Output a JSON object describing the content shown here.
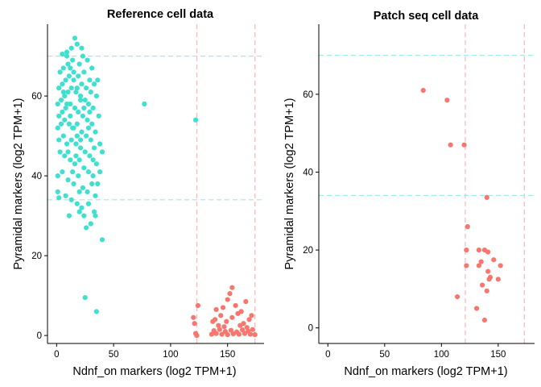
{
  "chart_data": [
    {
      "type": "scatter",
      "title": "Reference cell data",
      "xlabel": "Ndnf_on markers (log2 TPM+1)",
      "ylabel": "Pyramidal markers (log2 TPM+1)",
      "xticks": [
        0,
        50,
        100,
        150
      ],
      "yticks": [
        0,
        20,
        40,
        60
      ],
      "xlim": [
        -8,
        182
      ],
      "ylim": [
        -2,
        78
      ],
      "vlines": [
        123,
        174
      ],
      "hlines": [
        34,
        70
      ],
      "vline_color": "#ffb6b6",
      "hline_color": "#9fe8ec",
      "series": [
        {
          "color": "#40e0d0",
          "points": [
            [
              16,
              74.5
            ],
            [
              22,
              72
            ],
            [
              5,
              70.5
            ],
            [
              9,
              71
            ],
            [
              13,
              72
            ],
            [
              18,
              73
            ],
            [
              23,
              70
            ],
            [
              27,
              69
            ],
            [
              31,
              67
            ],
            [
              3,
              66
            ],
            [
              6,
              67
            ],
            [
              10,
              68
            ],
            [
              14,
              69
            ],
            [
              20,
              68
            ],
            [
              24,
              66
            ],
            [
              29,
              64
            ],
            [
              33,
              63
            ],
            [
              36,
              64
            ],
            [
              2,
              62
            ],
            [
              5,
              63
            ],
            [
              8,
              64
            ],
            [
              11,
              65
            ],
            [
              15,
              66
            ],
            [
              19,
              65
            ],
            [
              22,
              63
            ],
            [
              26,
              62
            ],
            [
              30,
              61
            ],
            [
              35,
              60
            ],
            [
              1,
              58
            ],
            [
              4,
              59
            ],
            [
              7,
              60
            ],
            [
              10,
              61
            ],
            [
              13,
              62
            ],
            [
              17,
              61
            ],
            [
              21,
              60
            ],
            [
              25,
              59
            ],
            [
              28,
              58
            ],
            [
              32,
              57
            ],
            [
              2,
              55
            ],
            [
              5,
              56
            ],
            [
              8,
              57
            ],
            [
              12,
              58
            ],
            [
              16,
              57
            ],
            [
              19,
              56
            ],
            [
              23,
              55
            ],
            [
              27,
              54
            ],
            [
              31,
              53
            ],
            [
              37,
              55
            ],
            [
              1,
              52
            ],
            [
              4,
              53
            ],
            [
              7,
              54
            ],
            [
              11,
              53
            ],
            [
              14,
              52
            ],
            [
              18,
              53
            ],
            [
              22,
              51
            ],
            [
              26,
              50
            ],
            [
              30,
              49
            ],
            [
              34,
              51
            ],
            [
              2,
              49
            ],
            [
              6,
              50
            ],
            [
              9,
              48
            ],
            [
              13,
              49
            ],
            [
              17,
              48
            ],
            [
              21,
              47
            ],
            [
              25,
              46
            ],
            [
              29,
              45
            ],
            [
              33,
              47
            ],
            [
              38,
              48
            ],
            [
              3,
              46
            ],
            [
              7,
              45
            ],
            [
              12,
              44
            ],
            [
              16,
              43
            ],
            [
              20,
              44
            ],
            [
              24,
              42
            ],
            [
              28,
              41
            ],
            [
              32,
              40
            ],
            [
              35,
              43
            ],
            [
              40,
              46
            ],
            [
              1,
              40
            ],
            [
              5,
              41
            ],
            [
              10,
              39
            ],
            [
              15,
              38
            ],
            [
              19,
              40
            ],
            [
              23,
              37
            ],
            [
              27,
              36
            ],
            [
              31,
              38
            ],
            [
              34,
              35
            ],
            [
              38,
              41
            ],
            [
              1,
              36
            ],
            [
              2,
              34.5
            ],
            [
              8,
              35
            ],
            [
              13,
              34
            ],
            [
              18,
              33
            ],
            [
              22,
              32
            ],
            [
              28,
              33
            ],
            [
              33,
              31
            ],
            [
              30,
              28
            ],
            [
              26,
              27
            ],
            [
              24,
              30
            ],
            [
              20,
              31
            ],
            [
              11,
              30
            ],
            [
              34,
              30
            ],
            [
              40,
              24
            ],
            [
              25,
              9.5
            ],
            [
              35,
              6
            ],
            [
              77,
              58
            ],
            [
              122,
              54
            ],
            [
              9,
              70
            ],
            [
              12,
              67
            ],
            [
              15,
              64
            ],
            [
              18,
              62
            ],
            [
              21,
              59
            ],
            [
              24,
              57
            ],
            [
              6,
              61
            ],
            [
              9,
              58
            ],
            [
              12,
              55
            ],
            [
              15,
              52
            ],
            [
              18,
              50
            ],
            [
              21,
              49
            ],
            [
              10,
              46
            ],
            [
              14,
              41
            ],
            [
              17,
              45
            ],
            [
              20,
              36
            ],
            [
              28,
              52
            ],
            [
              32,
              44
            ],
            [
              36,
              38
            ],
            [
              29,
              56
            ]
          ]
        },
        {
          "color": "#f8766d",
          "points": [
            [
              120,
              4.5
            ],
            [
              122,
              0.5
            ],
            [
              123,
              0
            ],
            [
              121,
              3
            ],
            [
              124,
              7.5
            ],
            [
              136,
              0.3
            ],
            [
              140,
              0.5
            ],
            [
              145,
              0.3
            ],
            [
              150,
              0.2
            ],
            [
              155,
              0.4
            ],
            [
              160,
              0.3
            ],
            [
              165,
              0.5
            ],
            [
              170,
              0.3
            ],
            [
              174,
              0.2
            ],
            [
              138,
              1.2
            ],
            [
              143,
              1.5
            ],
            [
              148,
              1.0
            ],
            [
              153,
              1.3
            ],
            [
              158,
              0.9
            ],
            [
              163,
              1.4
            ],
            [
              168,
              1.1
            ],
            [
              139,
              4
            ],
            [
              144,
              5
            ],
            [
              149,
              3.5
            ],
            [
              154,
              4.5
            ],
            [
              159,
              5.5
            ],
            [
              164,
              3
            ],
            [
              169,
              4
            ],
            [
              140,
              6.5
            ],
            [
              146,
              7
            ],
            [
              150,
              9
            ],
            [
              152,
              10.5
            ],
            [
              154,
              12
            ],
            [
              157,
              7.5
            ],
            [
              162,
              6
            ],
            [
              166,
              8.5
            ],
            [
              171,
              5
            ],
            [
              142,
              2.5
            ],
            [
              147,
              2.2
            ],
            [
              161,
              2.5
            ],
            [
              167,
              2
            ],
            [
              172,
              1.5
            ],
            [
              137,
              3.5
            ]
          ]
        }
      ]
    },
    {
      "type": "scatter",
      "title": "Patch seq cell data",
      "xlabel": "Ndnf_on markers (log2 TPM+1)",
      "ylabel": "Pyramidal markers (log2 TPM+1)",
      "xticks": [
        0,
        50,
        100,
        150
      ],
      "yticks": [
        0,
        20,
        40,
        60
      ],
      "xlim": [
        -8,
        182
      ],
      "ylim": [
        -4,
        78
      ],
      "vlines": [
        121,
        173
      ],
      "hlines": [
        34,
        70
      ],
      "vline_color": "#ffb6b6",
      "hline_color": "#9fe8ec",
      "series": [
        {
          "color": "#f8766d",
          "points": [
            [
              84,
              61
            ],
            [
              105,
              58.5
            ],
            [
              108,
              47
            ],
            [
              120,
              47
            ],
            [
              140,
              33.5
            ],
            [
              123,
              26
            ],
            [
              122,
              20
            ],
            [
              133,
              20
            ],
            [
              138,
              20
            ],
            [
              141,
              19.5
            ],
            [
              135,
              17
            ],
            [
              146,
              17.5
            ],
            [
              122,
              16
            ],
            [
              133,
              16
            ],
            [
              152,
              16
            ],
            [
              141,
              14.5
            ],
            [
              143,
              13
            ],
            [
              142,
              12.5
            ],
            [
              150,
              12.5
            ],
            [
              136,
              11
            ],
            [
              140,
              9.5
            ],
            [
              114,
              8
            ],
            [
              131,
              5
            ],
            [
              138,
              2
            ]
          ]
        }
      ]
    }
  ]
}
